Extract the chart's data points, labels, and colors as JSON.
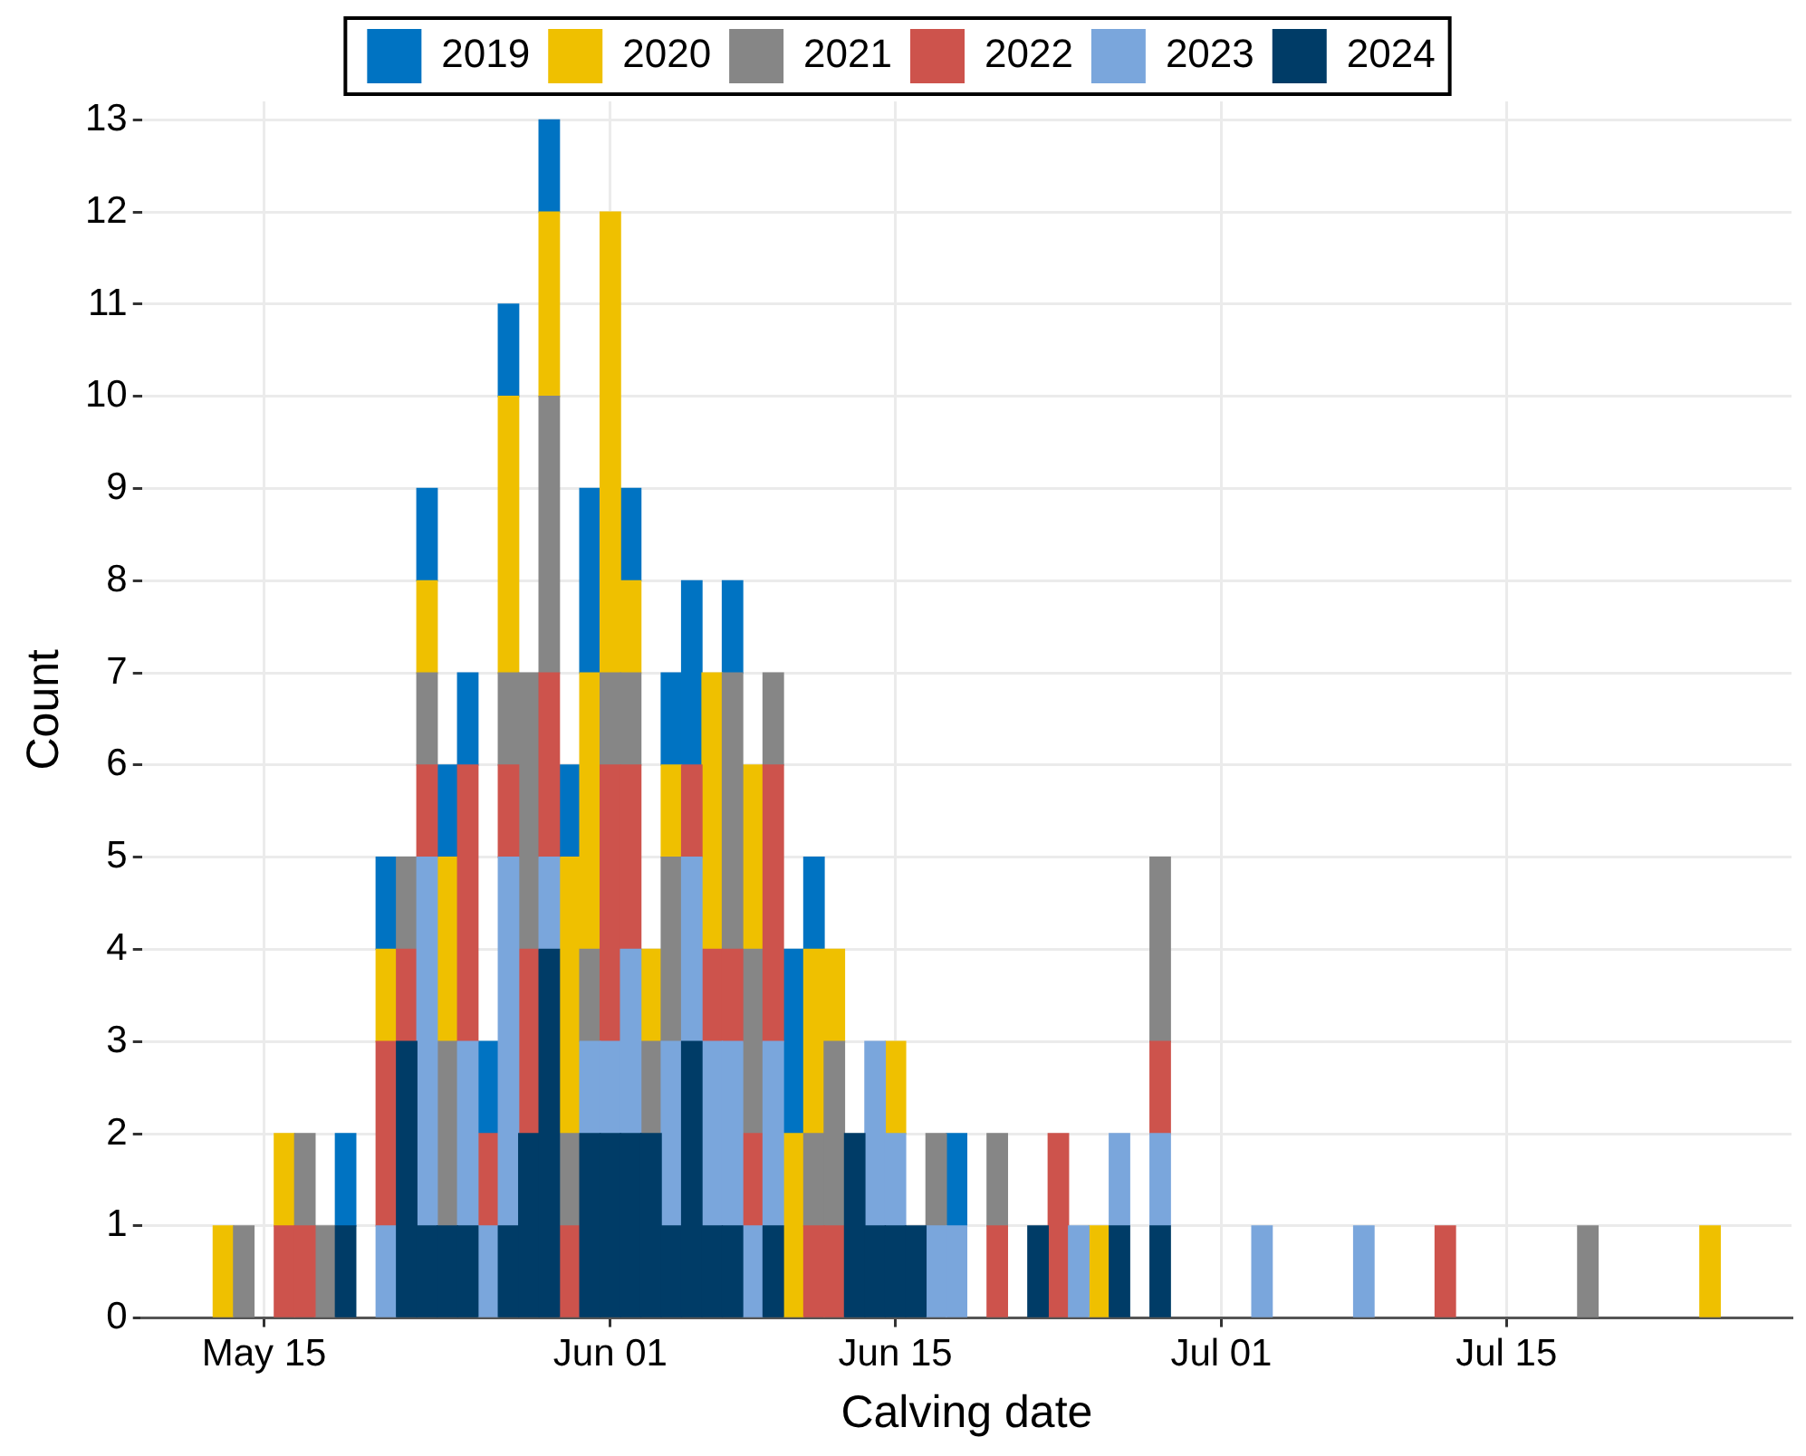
{
  "chart_data": {
    "type": "bar",
    "stacked": true,
    "xlabel": "Calving date",
    "ylabel": "Count",
    "x": [
      "--05-13",
      "--05-14",
      "--05-16",
      "--05-17",
      "--05-18",
      "--05-19",
      "--05-21",
      "--05-22",
      "--05-23",
      "--05-24",
      "--05-25",
      "--05-26",
      "--05-27",
      "--05-28",
      "--05-29",
      "--05-30",
      "--05-31",
      "--06-01",
      "--06-02",
      "--06-03",
      "--06-04",
      "--06-05",
      "--06-06",
      "--06-07",
      "--06-08",
      "--06-09",
      "--06-10",
      "--06-11",
      "--06-12",
      "--06-13",
      "--06-14",
      "--06-15",
      "--06-16",
      "--06-17",
      "--06-18",
      "--06-20",
      "--06-22",
      "--06-23",
      "--06-24",
      "--06-25",
      "--06-26",
      "--06-28",
      "--07-03",
      "--07-08",
      "--07-12",
      "--07-19",
      "--07-25"
    ],
    "series": [
      {
        "name": "2024",
        "color": "#003c67",
        "values": [
          null,
          null,
          null,
          null,
          null,
          1,
          null,
          3,
          1,
          1,
          1,
          null,
          1,
          2,
          4,
          null,
          2,
          2,
          2,
          2,
          1,
          3,
          1,
          1,
          null,
          1,
          null,
          null,
          null,
          2,
          1,
          1,
          1,
          null,
          null,
          null,
          1,
          null,
          null,
          null,
          1,
          1,
          null,
          null,
          null,
          null,
          null
        ]
      },
      {
        "name": "2023",
        "color": "#7aa6dc",
        "values": [
          null,
          null,
          null,
          null,
          null,
          null,
          1,
          null,
          4,
          null,
          2,
          1,
          4,
          null,
          1,
          null,
          1,
          1,
          2,
          null,
          2,
          2,
          2,
          2,
          1,
          2,
          null,
          null,
          null,
          null,
          2,
          1,
          null,
          1,
          1,
          null,
          null,
          null,
          1,
          null,
          1,
          1,
          1,
          1,
          null,
          null,
          null
        ]
      },
      {
        "name": "2022",
        "color": "#cd534c",
        "values": [
          null,
          null,
          1,
          1,
          null,
          null,
          2,
          1,
          1,
          null,
          3,
          1,
          1,
          2,
          2,
          1,
          null,
          3,
          2,
          null,
          null,
          1,
          1,
          1,
          1,
          3,
          null,
          1,
          1,
          null,
          null,
          null,
          null,
          null,
          null,
          1,
          null,
          2,
          null,
          null,
          null,
          1,
          null,
          null,
          1,
          null,
          null
        ]
      },
      {
        "name": "2021",
        "color": "#868686",
        "values": [
          null,
          1,
          null,
          1,
          1,
          null,
          null,
          1,
          1,
          2,
          null,
          null,
          1,
          3,
          3,
          1,
          1,
          1,
          1,
          1,
          2,
          null,
          null,
          3,
          2,
          1,
          null,
          1,
          2,
          null,
          null,
          null,
          null,
          1,
          null,
          1,
          null,
          null,
          null,
          null,
          null,
          2,
          null,
          null,
          null,
          1,
          null
        ]
      },
      {
        "name": "2020",
        "color": "#efc000",
        "values": [
          1,
          null,
          1,
          null,
          null,
          null,
          1,
          null,
          1,
          2,
          null,
          null,
          3,
          null,
          2,
          3,
          3,
          5,
          1,
          1,
          1,
          null,
          3,
          null,
          2,
          null,
          2,
          2,
          1,
          null,
          null,
          1,
          null,
          null,
          null,
          null,
          null,
          null,
          null,
          1,
          null,
          null,
          null,
          null,
          null,
          null,
          1
        ]
      },
      {
        "name": "2019",
        "color": "#0073c2",
        "values": [
          null,
          null,
          null,
          null,
          null,
          1,
          1,
          null,
          1,
          1,
          1,
          1,
          1,
          null,
          1,
          1,
          2,
          null,
          1,
          null,
          1,
          2,
          null,
          1,
          null,
          null,
          2,
          1,
          null,
          null,
          null,
          null,
          null,
          null,
          1,
          null,
          null,
          null,
          null,
          null,
          null,
          null,
          null,
          null,
          null,
          null,
          null
        ]
      }
    ],
    "xlim": [
      "--05-09",
      "--07-29"
    ],
    "xticks": [
      {
        "value": "--05-15",
        "label": "May 15"
      },
      {
        "value": "--06-01",
        "label": "Jun 01"
      },
      {
        "value": "--06-15",
        "label": "Jun 15"
      },
      {
        "value": "--07-01",
        "label": "Jul 01"
      },
      {
        "value": "--07-15",
        "label": "Jul 15"
      }
    ],
    "ylim": [
      0,
      13.2
    ],
    "yticks": [
      0,
      1,
      2,
      3,
      4,
      5,
      6,
      7,
      8,
      9,
      10,
      11,
      12,
      13
    ],
    "grid": true,
    "legend": "top"
  }
}
